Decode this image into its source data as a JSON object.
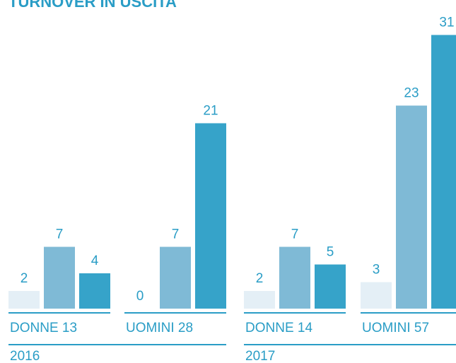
{
  "chart_data": {
    "type": "bar",
    "title": "TURNOVER IN USCITA",
    "categories": [
      "DONNE 13",
      "UOMINI 28",
      "DONNE 14",
      "UOMINI 57"
    ],
    "groups": [
      "2016",
      "2017"
    ],
    "series": [
      {
        "color": "#e4eff6",
        "values": [
          2,
          0,
          2,
          3
        ]
      },
      {
        "color": "#7fbad6",
        "values": [
          7,
          7,
          7,
          23
        ]
      },
      {
        "color": "#36a3c9",
        "values": [
          4,
          21,
          5,
          31
        ]
      }
    ],
    "ylim": [
      0,
      32
    ]
  }
}
